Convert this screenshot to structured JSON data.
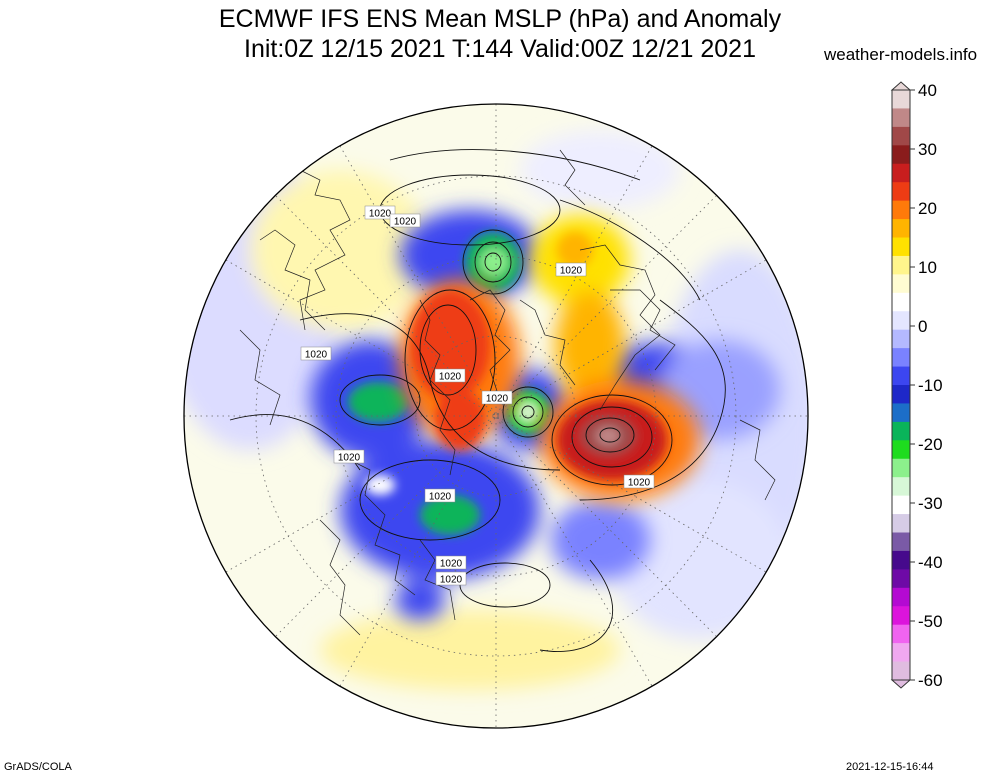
{
  "title_line_1": "ECMWF IFS ENS Mean MSLP (hPa) and Anomaly",
  "title_line_2": "Init:0Z 12/15 2021  T:144 Valid:00Z 12/21 2021",
  "source": "weather-models.info",
  "footer_left": "GrADS/COLA",
  "footer_right": "2021-12-15-16:44",
  "contour_label": "1020",
  "colorbar": {
    "ticks": [
      "40",
      "30",
      "20",
      "10",
      "0",
      "-10",
      "-20",
      "-30",
      "-40",
      "-50",
      "-60"
    ],
    "colors": [
      "#e8d8d8",
      "#c08888",
      "#a04848",
      "#8a1c1c",
      "#c81e1e",
      "#ee3c14",
      "#ff7a0a",
      "#ffb400",
      "#ffe100",
      "#fff58c",
      "#fffcd2",
      "#ffffff",
      "#e4e6ff",
      "#b4b9ff",
      "#7a82ff",
      "#3c46f0",
      "#1e28c8",
      "#1c6ec8",
      "#0ab45a",
      "#1edc1e",
      "#8cf08c",
      "#d7f7d7",
      "#ffffff",
      "#d6cce6",
      "#7a5aa6",
      "#460a8c",
      "#6e0aa6",
      "#b40ad2",
      "#dc14dc",
      "#f064f0",
      "#f0a8f0",
      "#e0bce0"
    ]
  }
}
